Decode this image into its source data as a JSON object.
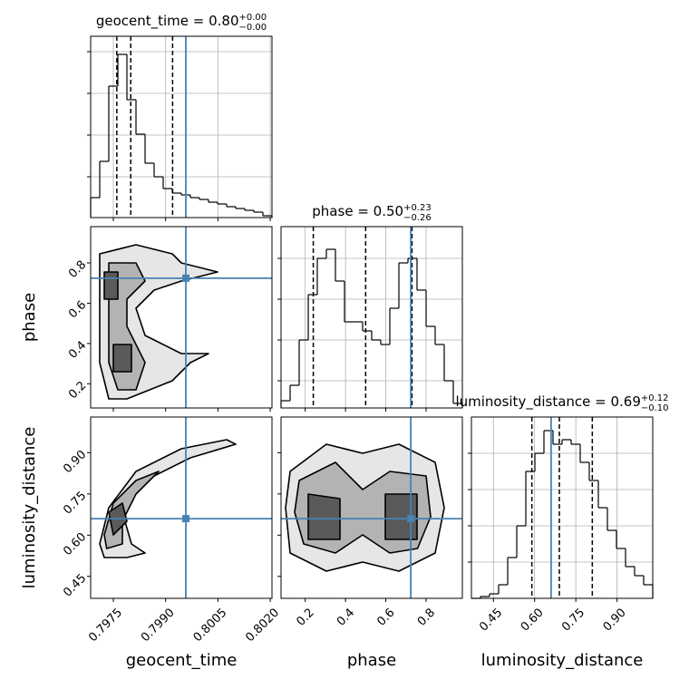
{
  "chart_data": {
    "type": "corner",
    "truth_color": "#4682b4",
    "grid": true,
    "params": [
      {
        "name": "geocent_time",
        "title": "geocent_time = 0.80",
        "title_plus": "+0.00",
        "title_minus": "−0.00",
        "lim": [
          0.79685,
          0.80205
        ],
        "ticks": [
          0.7975,
          {
            "value": 0.799,
            "label": "0.7990"
          },
          0.8005,
          {
            "value": 0.802,
            "label": "0.8020"
          }
        ],
        "truth": 0.79958,
        "quantiles": [
          0.7976,
          0.798,
          0.7992
        ],
        "bins": [
          0.79685,
          0.79711,
          0.79737,
          0.79763,
          0.79789,
          0.79815,
          0.79841,
          0.79867,
          0.79893,
          0.79919,
          0.79945,
          0.79971,
          0.79997,
          0.80023,
          0.80049,
          0.80075,
          0.80101,
          0.80127,
          0.80153,
          0.80179,
          0.80205
        ],
        "counts": [
          22,
          62,
          145,
          180,
          130,
          92,
          60,
          45,
          32,
          27,
          25,
          22,
          20,
          17,
          15,
          12,
          10,
          8,
          6,
          2
        ],
        "hist_ylim": [
          0,
          200
        ],
        "hist_yticks": [
          45,
          91,
          137,
          183
        ]
      },
      {
        "name": "phase",
        "title": "phase = 0.50",
        "title_plus": "+0.23",
        "title_minus": "−0.26",
        "lim": [
          0.08,
          0.98
        ],
        "ticks": [
          0.2,
          0.4,
          0.6,
          0.8
        ],
        "truth": 0.724,
        "quantiles": [
          0.24,
          0.5,
          0.73
        ],
        "bins": [
          0.08,
          0.125,
          0.17,
          0.215,
          0.26,
          0.305,
          0.35,
          0.395,
          0.44,
          0.485,
          0.53,
          0.575,
          0.62,
          0.665,
          0.71,
          0.755,
          0.8,
          0.845,
          0.89,
          0.935,
          0.98
        ],
        "counts": [
          8,
          25,
          75,
          125,
          165,
          175,
          140,
          95,
          95,
          85,
          75,
          70,
          110,
          160,
          165,
          130,
          90,
          70,
          30,
          5
        ],
        "hist_ylim": [
          0,
          200
        ],
        "hist_yticks": [
          30,
          75,
          120,
          165
        ]
      },
      {
        "name": "luminosity_distance",
        "title": "luminosity_distance = 0.69",
        "title_plus": "+0.12",
        "title_minus": "−0.10",
        "lim": [
          0.37,
          1.03
        ],
        "ticks": [
          0.45,
          {
            "value": 0.6,
            "label": "0.60"
          },
          0.75,
          {
            "value": 0.9,
            "label": "0.90"
          }
        ],
        "truth": 0.66,
        "quantiles": [
          0.59,
          0.69,
          0.81
        ],
        "bins": [
          0.37,
          0.403,
          0.436,
          0.469,
          0.502,
          0.535,
          0.568,
          0.601,
          0.634,
          0.667,
          0.7,
          0.733,
          0.766,
          0.799,
          0.832,
          0.865,
          0.898,
          0.931,
          0.964,
          0.997,
          1.03
        ],
        "counts": [
          0,
          2,
          5,
          15,
          45,
          80,
          140,
          160,
          185,
          170,
          175,
          170,
          150,
          130,
          100,
          75,
          55,
          35,
          25,
          15
        ],
        "hist_ylim": [
          0,
          200
        ],
        "hist_yticks": [
          40,
          80,
          120,
          160
        ]
      }
    ],
    "contours": [
      [
        [
          {
            "x": [
              0.79711,
              0.79815,
              0.79919,
              0.79945,
              0.80049,
              0.79945,
              0.79867,
              0.79815,
              0.79841,
              0.79945,
              0.80023,
              0.79971,
              0.79919,
              0.79789,
              0.79737,
              0.79711,
              0.79711
            ],
            "y": [
              0.845,
              0.89,
              0.845,
              0.8,
              0.755,
              0.71,
              0.665,
              0.575,
              0.44,
              0.35,
              0.35,
              0.305,
              0.215,
              0.125,
              0.125,
              0.305,
              0.575
            ]
          }
        ],
        [
          {
            "x": [
              0.79737,
              0.79815,
              0.79841,
              0.79789,
              0.79789,
              0.79841,
              0.79815,
              0.79763,
              0.79737,
              0.79737
            ],
            "y": [
              0.8,
              0.8,
              0.71,
              0.62,
              0.485,
              0.305,
              0.17,
              0.17,
              0.305,
              0.575
            ]
          }
        ],
        [
          {
            "x": [
              0.79724,
              0.79763,
              0.79763,
              0.79724
            ],
            "y": [
              0.755,
              0.755,
              0.62,
              0.62
            ]
          },
          {
            "x": [
              0.7975,
              0.79802,
              0.79802,
              0.7975
            ],
            "y": [
              0.395,
              0.395,
              0.26,
              0.26
            ]
          }
        ]
      ],
      [
        [
          {
            "x": [
              0.79711,
              0.79737,
              0.79815,
              0.79945,
              0.80075,
              0.80101,
              0.79971,
              0.79841,
              0.79776,
              0.79802,
              0.79841,
              0.79789,
              0.79724
            ],
            "y": [
              0.568,
              0.7,
              0.832,
              0.9145,
              0.9475,
              0.931,
              0.8815,
              0.799,
              0.6835,
              0.568,
              0.535,
              0.5185,
              0.5185
            ]
          }
        ],
        [
          {
            "x": [
              0.79724,
              0.7975,
              0.79815,
              0.7988,
              0.79815,
              0.79776,
              0.79776,
              0.79731
            ],
            "y": [
              0.601,
              0.7165,
              0.799,
              0.832,
              0.7495,
              0.6505,
              0.568,
              0.5515
            ]
          }
        ],
        [
          {
            "x": [
              0.79737,
              0.79776,
              0.79789,
              0.7975
            ],
            "y": [
              0.6835,
              0.7165,
              0.6505,
              0.601
            ]
          }
        ]
      ],
      [
        [
          {
            "x": [
              0.125,
              0.305,
              0.485,
              0.665,
              0.845,
              0.89,
              0.845,
              0.665,
              0.485,
              0.305,
              0.125,
              0.1025
            ],
            "y": [
              0.832,
              0.931,
              0.898,
              0.931,
              0.865,
              0.7,
              0.535,
              0.469,
              0.502,
              0.469,
              0.535,
              0.7
            ]
          }
        ],
        [
          {
            "x": [
              0.17,
              0.35,
              0.485,
              0.62,
              0.8,
              0.8225,
              0.7575,
              0.62,
              0.485,
              0.35,
              0.1925,
              0.1475
            ],
            "y": [
              0.799,
              0.865,
              0.766,
              0.832,
              0.8155,
              0.667,
              0.5515,
              0.535,
              0.601,
              0.535,
              0.568,
              0.6835
            ]
          }
        ],
        [
          {
            "x": [
              0.215,
              0.3725,
              0.3725,
              0.215
            ],
            "y": [
              0.7495,
              0.733,
              0.5845,
              0.5845
            ]
          },
          {
            "x": [
              0.5975,
              0.755,
              0.755,
              0.5975
            ],
            "y": [
              0.7495,
              0.7495,
              0.5845,
              0.5845
            ]
          }
        ]
      ]
    ]
  }
}
